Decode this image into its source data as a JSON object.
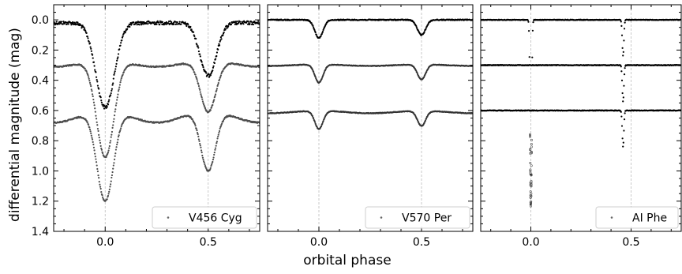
{
  "figure": {
    "xlabel": "orbital phase",
    "ylabel": "differential magnitude (mag)"
  },
  "chart_data": [
    {
      "type": "scatter",
      "star": "V456 Cyg",
      "legend": "V456 Cyg",
      "legend_position": "bottom-right",
      "xlim": [
        -0.25,
        0.75
      ],
      "ylim": [
        1.4,
        -0.1
      ],
      "y_inverted": true,
      "xticks": [
        0.0,
        0.5
      ],
      "xtick_labels": [
        "0.0",
        "0.5"
      ],
      "yticks": [
        0.0,
        0.2,
        0.4,
        0.6,
        0.8,
        1.0,
        1.2,
        1.4
      ],
      "ytick_labels": [
        "0.0",
        "0.2",
        "0.4",
        "0.6",
        "0.8",
        "1.0",
        "1.2",
        "1.4"
      ],
      "vlines": [
        0.0,
        0.5
      ],
      "series": [
        {
          "baseline": 0.02,
          "curvature": 0.0,
          "primary_depth": 0.56,
          "secondary_depth": 0.35,
          "primary_width": 0.045,
          "secondary_width": 0.04,
          "secondary_phase": 0.5,
          "scatter": 0.012,
          "color": "#000000"
        },
        {
          "baseline": 0.29,
          "curvature": 0.02,
          "primary_depth": 0.64,
          "secondary_depth": 0.34,
          "primary_width": 0.042,
          "secondary_width": 0.038,
          "secondary_phase": 0.5,
          "scatter": 0.004,
          "color": "#4d4d4d"
        },
        {
          "baseline": 0.64,
          "curvature": 0.04,
          "primary_depth": 0.6,
          "secondary_depth": 0.4,
          "primary_width": 0.04,
          "secondary_width": 0.036,
          "secondary_phase": 0.5,
          "scatter": 0.004,
          "color": "#4d4d4d"
        }
      ]
    },
    {
      "type": "scatter",
      "star": "V570 Per",
      "legend": "V570 Per",
      "legend_position": "bottom-right",
      "xlim": [
        -0.25,
        0.75
      ],
      "ylim": [
        1.4,
        -0.1
      ],
      "y_inverted": true,
      "xticks": [
        0.0,
        0.5
      ],
      "xtick_labels": [
        "0.0",
        "0.5"
      ],
      "yticks": [
        0.0,
        0.2,
        0.4,
        0.6,
        0.8,
        1.0,
        1.2,
        1.4
      ],
      "ytick_labels": [],
      "vlines": [
        0.0,
        0.5
      ],
      "series": [
        {
          "baseline": 0.0,
          "curvature": 0.0,
          "primary_depth": 0.12,
          "secondary_depth": 0.1,
          "primary_width": 0.02,
          "secondary_width": 0.02,
          "secondary_phase": 0.5,
          "scatter": 0.003,
          "color": "#000000"
        },
        {
          "baseline": 0.3,
          "curvature": 0.005,
          "primary_depth": 0.12,
          "secondary_depth": 0.1,
          "primary_width": 0.02,
          "secondary_width": 0.02,
          "secondary_phase": 0.5,
          "scatter": 0.002,
          "color": "#333333"
        },
        {
          "baseline": 0.61,
          "curvature": 0.008,
          "primary_depth": 0.12,
          "secondary_depth": 0.1,
          "primary_width": 0.02,
          "secondary_width": 0.02,
          "secondary_phase": 0.5,
          "scatter": 0.002,
          "color": "#333333"
        }
      ]
    },
    {
      "type": "scatter",
      "star": "AI Phe",
      "legend": "AI Phe",
      "legend_position": "bottom-right",
      "xlim": [
        -0.25,
        0.75
      ],
      "ylim": [
        1.4,
        -0.1
      ],
      "y_inverted": true,
      "xticks": [
        0.0,
        0.5
      ],
      "xtick_labels": [
        "0.0",
        "0.5"
      ],
      "yticks": [
        0.0,
        0.2,
        0.4,
        0.6,
        0.8,
        1.0,
        1.2,
        1.4
      ],
      "ytick_labels": [],
      "vlines": [
        0.0,
        0.5
      ],
      "series": [
        {
          "baseline": 0.0,
          "curvature": 0.0,
          "primary_depth": 1.22,
          "secondary_depth": 0.24,
          "primary_width": 0.004,
          "secondary_width": 0.004,
          "secondary_phase": 0.46,
          "scatter": 0.002,
          "color": "#000000"
        },
        {
          "baseline": 0.3,
          "curvature": 0.0,
          "primary_depth": 0.0,
          "secondary_depth": 0.24,
          "primary_width": 0.004,
          "secondary_width": 0.004,
          "secondary_phase": 0.46,
          "scatter": 0.002,
          "color": "#000000"
        },
        {
          "baseline": 0.6,
          "curvature": 0.0,
          "primary_depth": 0.0,
          "secondary_depth": 0.24,
          "primary_width": 0.004,
          "secondary_width": 0.004,
          "secondary_phase": 0.46,
          "scatter": 0.002,
          "color": "#000000"
        }
      ]
    }
  ]
}
